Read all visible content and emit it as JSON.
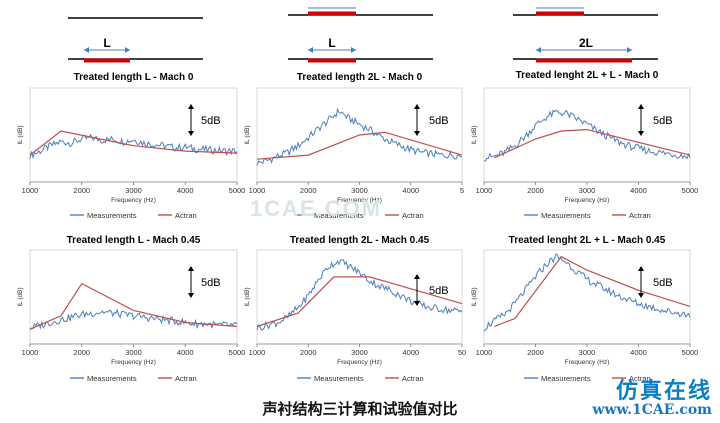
{
  "caption": "声衬结构三计算和试验值对比",
  "watermark": {
    "line1": "仿真在线",
    "line2": "www.1CAE.com",
    "center": "1CAE.COM"
  },
  "colors": {
    "measurements": "#4a7fbf",
    "actran": "#c0504d",
    "liner": "#d40000",
    "axis": "#000000"
  },
  "schematics": [
    {
      "label": "L"
    },
    {
      "label": "L"
    },
    {
      "label": "2L"
    }
  ],
  "chart_data": [
    {
      "type": "line",
      "title": "Treated length L - Mach 0",
      "xlabel": "Frequency (Hz)",
      "ylabel": "IL (dB)",
      "xlim": [
        1000,
        5000
      ],
      "xticks": [
        "1000",
        "2000",
        "3000",
        "4000",
        "5000"
      ],
      "ylim": [
        -2,
        12
      ],
      "scale_label": "5dB",
      "legend": {
        "placement": "bottom",
        "entries": [
          "Measurements",
          "Actran"
        ]
      },
      "series": [
        {
          "name": "Measurements",
          "x": [
            1000,
            1200,
            1400,
            1600,
            1800,
            2000,
            2200,
            2400,
            2600,
            2800,
            3000,
            3200,
            3400,
            3600,
            3800,
            4000,
            4200,
            4400,
            4600,
            4800,
            5000
          ],
          "y": [
            2.0,
            2.6,
            3.4,
            4.0,
            3.8,
            4.4,
            4.6,
            4.2,
            4.4,
            4.0,
            4.3,
            3.8,
            3.6,
            3.4,
            3.1,
            3.2,
            2.9,
            2.8,
            2.7,
            2.6,
            2.6
          ]
        },
        {
          "name": "Actran",
          "x": [
            1000,
            1600,
            3000,
            4000,
            5000
          ],
          "y": [
            2.0,
            5.6,
            3.4,
            2.6,
            2.3
          ]
        }
      ]
    },
    {
      "type": "line",
      "title": "Treated length 2L - Mach 0",
      "xlabel": "Frequency (Hz)",
      "ylabel": "IL (dB)",
      "xlim": [
        1000,
        5000
      ],
      "xticks": [
        "1000",
        "2000",
        "3000",
        "4000",
        "5"
      ],
      "ylim": [
        -2,
        12
      ],
      "scale_label": "5dB",
      "legend": {
        "placement": "bottom",
        "entries": [
          "Measurements",
          "Actran"
        ]
      },
      "series": [
        {
          "name": "Measurements",
          "x": [
            1000,
            1200,
            1400,
            1600,
            1800,
            2000,
            2200,
            2400,
            2600,
            2800,
            3000,
            3200,
            3400,
            3600,
            3800,
            4000,
            4200,
            4400,
            4600,
            4800,
            5000
          ],
          "y": [
            0.8,
            1.2,
            1.8,
            2.4,
            3.4,
            4.6,
            6.0,
            7.2,
            8.6,
            7.4,
            6.6,
            5.8,
            4.8,
            4.0,
            3.4,
            2.8,
            2.4,
            2.2,
            2.0,
            2.0,
            1.9
          ]
        },
        {
          "name": "Actran",
          "x": [
            1000,
            2000,
            3000,
            3500,
            5000
          ],
          "y": [
            1.4,
            2.0,
            5.0,
            5.4,
            2.0
          ]
        }
      ]
    },
    {
      "type": "line",
      "title": "Treated lenght 2L + L - Mach 0",
      "xlabel": "Frequency (Hz)",
      "ylabel": "IL (dB)",
      "xlim": [
        1000,
        5000
      ],
      "xticks": [
        "1000",
        "2000",
        "3000",
        "4000",
        "5000"
      ],
      "ylim": [
        -2,
        12
      ],
      "scale_label": "5dB",
      "legend": {
        "placement": "bottom",
        "entries": [
          "Measurements",
          "Actran"
        ]
      },
      "series": [
        {
          "name": "Measurements",
          "x": [
            1000,
            1200,
            1400,
            1600,
            1800,
            2000,
            2200,
            2400,
            2600,
            2800,
            3000,
            3200,
            3400,
            3600,
            3800,
            4000,
            4200,
            4400,
            4600,
            4800,
            5000
          ],
          "y": [
            1.6,
            1.8,
            2.4,
            3.4,
            4.8,
            6.4,
            7.6,
            8.4,
            8.2,
            7.4,
            6.6,
            5.6,
            4.8,
            4.0,
            3.4,
            3.0,
            2.6,
            2.4,
            2.2,
            2.0,
            1.8
          ]
        },
        {
          "name": "Actran",
          "x": [
            1200,
            2000,
            2500,
            3000,
            5000
          ],
          "y": [
            1.6,
            4.4,
            5.6,
            5.8,
            2.0
          ]
        }
      ]
    },
    {
      "type": "line",
      "title": "Treated length L - Mach 0.45",
      "xlabel": "Frequency (Hz)",
      "ylabel": "IL (dB)",
      "xlim": [
        1000,
        5000
      ],
      "xticks": [
        "1000",
        "2000",
        "3000",
        "4000",
        "5000"
      ],
      "ylim": [
        -2,
        12
      ],
      "scale_label": "5dB",
      "legend": {
        "placement": "bottom",
        "entries": [
          "Measurements",
          "Actran"
        ]
      },
      "series": [
        {
          "name": "Measurements",
          "x": [
            1000,
            1200,
            1400,
            1600,
            1800,
            2000,
            2200,
            2400,
            2600,
            2800,
            3000,
            3200,
            3400,
            3600,
            3800,
            4000,
            4200,
            4400,
            4600,
            4800,
            5000
          ],
          "y": [
            0.4,
            0.8,
            1.2,
            1.6,
            2.0,
            2.4,
            2.6,
            2.8,
            2.6,
            2.4,
            2.2,
            2.0,
            1.8,
            1.6,
            1.4,
            1.2,
            1.0,
            1.0,
            0.8,
            0.8,
            0.7
          ]
        },
        {
          "name": "Actran",
          "x": [
            1000,
            1600,
            2000,
            3000,
            4000,
            5000
          ],
          "y": [
            0.2,
            2.2,
            7.0,
            3.0,
            1.2,
            0.6
          ]
        }
      ]
    },
    {
      "type": "line",
      "title": "Treated length 2L - Mach 0.45",
      "xlabel": "Frequency (Hz)",
      "ylabel": "IL (dB)",
      "xlim": [
        1000,
        5000
      ],
      "xticks": [
        "1000",
        "2000",
        "3000",
        "4000",
        "50"
      ],
      "ylim": [
        -2,
        12
      ],
      "scale_label": "5dB",
      "legend": {
        "placement": "bottom",
        "entries": [
          "Measurements",
          "Actran"
        ]
      },
      "series": [
        {
          "name": "Measurements",
          "x": [
            1000,
            1200,
            1400,
            1600,
            1800,
            2000,
            2200,
            2400,
            2600,
            2800,
            3000,
            3200,
            3400,
            3600,
            3800,
            4000,
            4200,
            4400,
            4600,
            4800,
            5000
          ],
          "y": [
            0.4,
            0.8,
            1.2,
            2.0,
            3.4,
            5.2,
            7.6,
            9.6,
            10.4,
            9.6,
            8.6,
            7.4,
            6.6,
            6.0,
            5.2,
            4.4,
            3.8,
            3.4,
            3.2,
            3.0,
            2.8
          ]
        },
        {
          "name": "Actran",
          "x": [
            1000,
            1800,
            2500,
            3200,
            5000
          ],
          "y": [
            0.6,
            2.6,
            8.0,
            8.0,
            4.0
          ]
        }
      ]
    },
    {
      "type": "line",
      "title": "Treated lenght 2L + L - Mach 0.45",
      "xlabel": "Frequency (Hz)",
      "ylabel": "IL (dB)",
      "xlim": [
        1000,
        5000
      ],
      "xticks": [
        "1000",
        "2000",
        "3000",
        "4000",
        "5000"
      ],
      "ylim": [
        -2,
        12
      ],
      "scale_label": "5dB",
      "legend": {
        "placement": "bottom",
        "entries": [
          "Measurements",
          "Actran"
        ]
      },
      "series": [
        {
          "name": "Measurements",
          "x": [
            1000,
            1200,
            1400,
            1600,
            1800,
            2000,
            2200,
            2400,
            2600,
            2800,
            3000,
            3200,
            3400,
            3600,
            3800,
            4000,
            4200,
            4400,
            4600,
            4800,
            5000
          ],
          "y": [
            0.4,
            1.4,
            2.4,
            4.0,
            6.0,
            8.0,
            9.8,
            11.0,
            10.2,
            8.8,
            7.6,
            6.8,
            6.0,
            5.2,
            4.6,
            4.0,
            3.6,
            3.2,
            2.8,
            2.6,
            2.2
          ]
        },
        {
          "name": "Actran",
          "x": [
            1200,
            1600,
            2500,
            3000,
            4000,
            5000
          ],
          "y": [
            0.6,
            1.8,
            11.0,
            9.0,
            6.0,
            3.6
          ]
        }
      ]
    }
  ]
}
